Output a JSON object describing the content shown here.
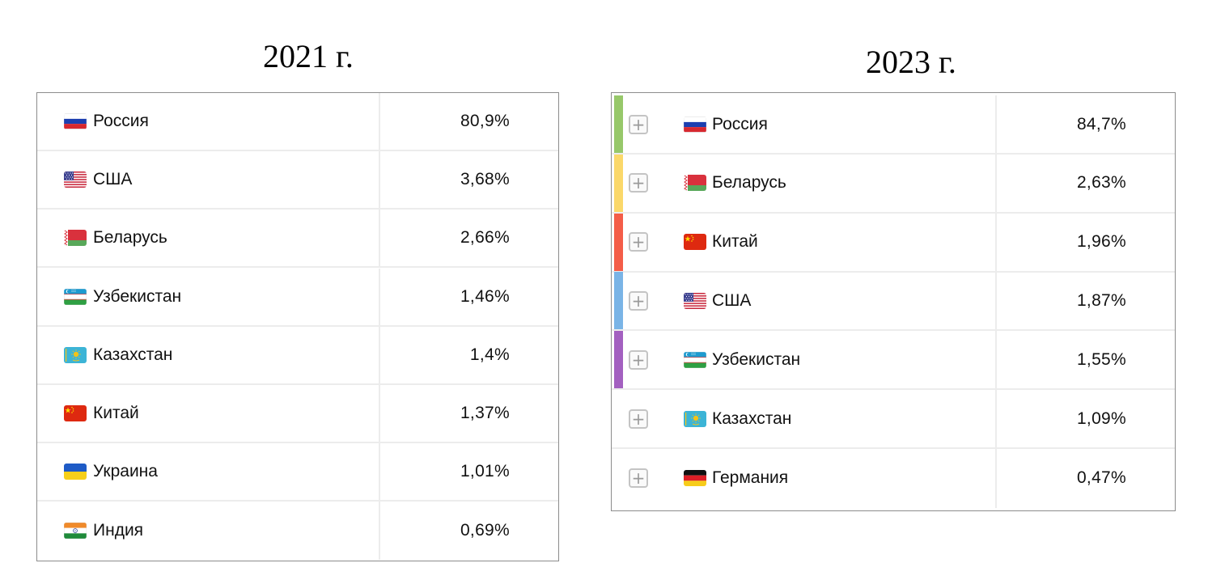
{
  "left_table": {
    "title": "2021 г.",
    "rows": [
      {
        "country": "Россия",
        "value": "80,9%",
        "flag": "ru-flag-icon"
      },
      {
        "country": "США",
        "value": "3,68%",
        "flag": "us-flag-icon"
      },
      {
        "country": "Беларусь",
        "value": "2,66%",
        "flag": "by-flag-icon"
      },
      {
        "country": "Узбекистан",
        "value": "1,46%",
        "flag": "uz-flag-icon"
      },
      {
        "country": "Казахстан",
        "value": "1,4%",
        "flag": "kz-flag-icon"
      },
      {
        "country": "Китай",
        "value": "1,37%",
        "flag": "cn-flag-icon"
      },
      {
        "country": "Украина",
        "value": "1,01%",
        "flag": "ua-flag-icon"
      },
      {
        "country": "Индия",
        "value": "0,69%",
        "flag": "in-flag-icon"
      }
    ]
  },
  "right_table": {
    "title": "2023 г.",
    "rows": [
      {
        "country": "Россия",
        "value": "84,7%",
        "flag": "ru-flag-icon",
        "bar_color": "#97c86a"
      },
      {
        "country": "Беларусь",
        "value": "2,63%",
        "flag": "by-flag-icon",
        "bar_color": "#fbd86a"
      },
      {
        "country": "Китай",
        "value": "1,96%",
        "flag": "cn-flag-icon",
        "bar_color": "#f45d48"
      },
      {
        "country": "США",
        "value": "1,87%",
        "flag": "us-flag-icon",
        "bar_color": "#7ab4e6"
      },
      {
        "country": "Узбекистан",
        "value": "1,55%",
        "flag": "uz-flag-icon",
        "bar_color": "#a360c0"
      },
      {
        "country": "Казахстан",
        "value": "1,09%",
        "flag": "kz-flag-icon",
        "bar_color": ""
      },
      {
        "country": "Германия",
        "value": "0,47%",
        "flag": "de-flag-icon",
        "bar_color": ""
      }
    ]
  }
}
